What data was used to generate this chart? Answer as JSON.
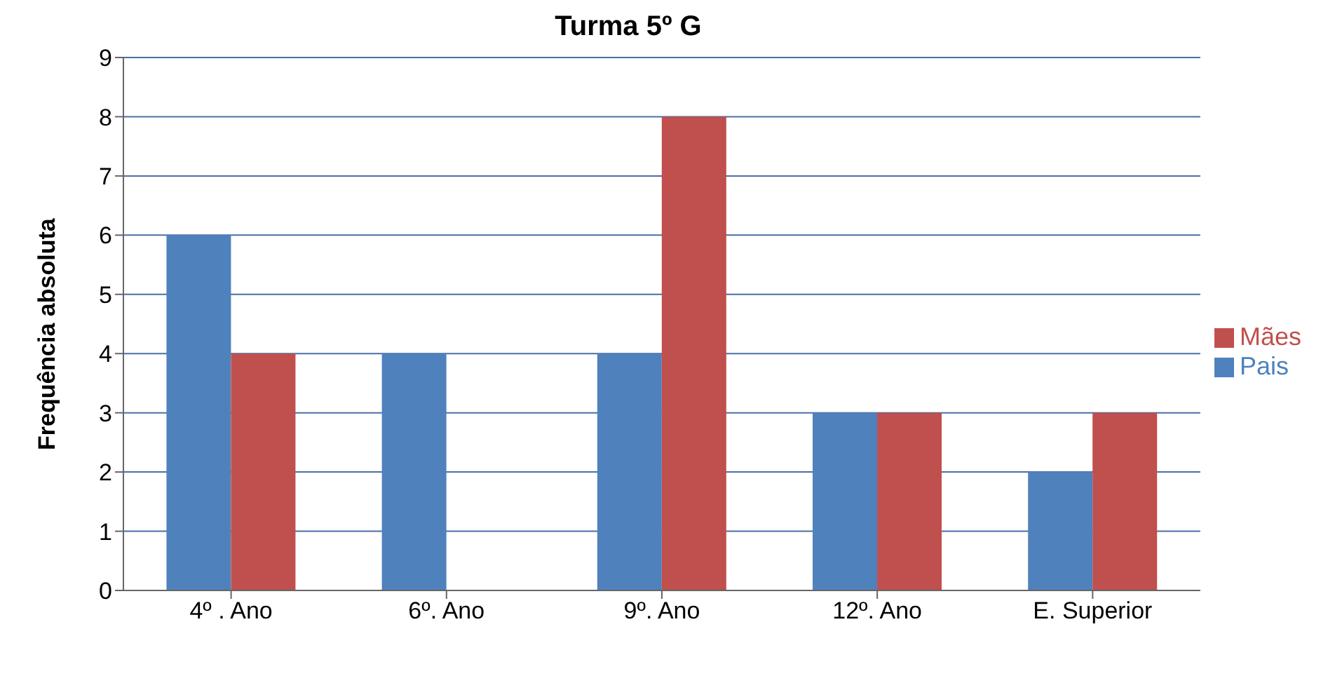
{
  "chart_data": {
    "type": "bar",
    "title": "Turma 5º G",
    "ylabel": "Frequência absoluta",
    "categories": [
      "4º . Ano",
      "6º. Ano",
      "9º. Ano",
      "12º. Ano",
      "E. Superior"
    ],
    "series": [
      {
        "name": "Pais",
        "color": "#4f81bd",
        "values": [
          6,
          4,
          4,
          3,
          2
        ]
      },
      {
        "name": "Mães",
        "color": "#c0504d",
        "values": [
          4,
          0,
          8,
          3,
          3
        ]
      }
    ],
    "ylim": [
      0,
      9
    ],
    "yticks": [
      0,
      1,
      2,
      3,
      4,
      5,
      6,
      7,
      8,
      9
    ],
    "grid": "y",
    "legend": "right"
  }
}
